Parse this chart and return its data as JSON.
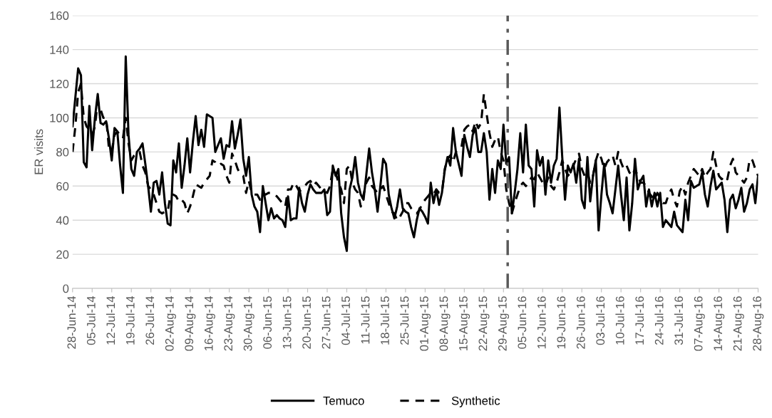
{
  "chart_data": {
    "type": "line",
    "ylabel": "ER visits",
    "categories": [
      "28-Jun-14",
      null,
      null,
      null,
      null,
      null,
      null,
      "05-Jul-14",
      null,
      null,
      null,
      null,
      null,
      null,
      "12-Jul-14",
      null,
      null,
      null,
      null,
      null,
      null,
      "19-Jul-14",
      null,
      null,
      null,
      null,
      null,
      null,
      "26-Jul-14",
      null,
      null,
      null,
      null,
      null,
      null,
      "02-Aug-14",
      null,
      null,
      null,
      null,
      null,
      null,
      "09-Aug-14",
      null,
      null,
      null,
      null,
      null,
      null,
      "16-Aug-14",
      null,
      null,
      null,
      null,
      null,
      null,
      "23-Aug-14",
      null,
      null,
      null,
      null,
      null,
      null,
      "30-Aug-14",
      null,
      null,
      null,
      null,
      null,
      null,
      "06-Jun-15",
      null,
      null,
      null,
      null,
      null,
      null,
      "13-Jun-15",
      null,
      null,
      null,
      null,
      null,
      null,
      "20-Jun-15",
      null,
      null,
      null,
      null,
      null,
      null,
      "27-Jun-15",
      null,
      null,
      null,
      null,
      null,
      null,
      "04-Jul-15",
      null,
      null,
      null,
      null,
      null,
      null,
      "11-Jul-15",
      null,
      null,
      null,
      null,
      null,
      null,
      "18-Jul-15",
      null,
      null,
      null,
      null,
      null,
      null,
      "25-Jul-15",
      null,
      null,
      null,
      null,
      null,
      null,
      "01-Aug-15",
      null,
      null,
      null,
      null,
      null,
      null,
      "08-Aug-15",
      null,
      null,
      null,
      null,
      null,
      null,
      "15-Aug-15",
      null,
      null,
      null,
      null,
      null,
      null,
      "22-Aug-15",
      null,
      null,
      null,
      null,
      null,
      null,
      "29-Aug-15",
      null,
      null,
      null,
      null,
      null,
      null,
      "05-Jun-16",
      null,
      null,
      null,
      null,
      null,
      null,
      "12-Jun-16",
      null,
      null,
      null,
      null,
      null,
      null,
      "19-Jun-16",
      null,
      null,
      null,
      null,
      null,
      null,
      "26-Jun-16",
      null,
      null,
      null,
      null,
      null,
      null,
      "03-Jul-16",
      null,
      null,
      null,
      null,
      null,
      null,
      "10-Jul-16",
      null,
      null,
      null,
      null,
      null,
      null,
      "17-Jul-16",
      null,
      null,
      null,
      null,
      null,
      null,
      "24-Jul-16",
      null,
      null,
      null,
      null,
      null,
      null,
      "31-Jul-16",
      null,
      null,
      null,
      null,
      null,
      null,
      "07-Aug-16",
      null,
      null,
      null,
      null,
      null,
      null,
      "14-Aug-16",
      null,
      null,
      null,
      null,
      null,
      null,
      "21-Aug-16",
      null,
      null,
      null,
      null,
      null,
      null,
      "28-Aug-16"
    ],
    "series": [
      {
        "name": "Temuco",
        "color": "#000000",
        "line_style": "solid",
        "values": [
          95,
          112,
          129,
          125,
          74,
          71,
          107,
          81,
          100,
          114,
          97,
          96,
          98,
          88,
          75,
          94,
          92,
          72,
          56,
          136,
          90,
          70,
          66,
          80,
          82,
          85,
          73,
          60,
          45,
          62,
          63,
          55,
          68,
          50,
          38,
          37,
          75,
          68,
          85,
          59,
          72,
          88,
          68,
          86,
          101,
          84,
          93,
          83,
          102,
          101,
          100,
          80,
          84,
          88,
          76,
          84,
          83,
          98,
          82,
          90,
          99,
          76,
          66,
          77,
          55,
          48,
          45,
          33,
          60,
          50,
          40,
          47,
          41,
          43,
          41,
          40,
          36,
          54,
          40,
          41,
          41,
          59,
          50,
          45,
          55,
          61,
          58,
          56,
          56,
          56,
          58,
          43,
          45,
          72,
          66,
          70,
          44,
          30,
          22,
          58,
          65,
          77,
          62,
          55,
          52,
          67,
          82,
          68,
          58,
          45,
          60,
          76,
          73,
          55,
          47,
          41,
          48,
          58,
          47,
          45,
          44,
          36,
          30,
          40,
          47,
          45,
          42,
          38,
          62,
          50,
          58,
          49,
          56,
          69,
          77,
          72,
          94,
          80,
          73,
          66,
          90,
          83,
          77,
          90,
          94,
          80,
          80,
          91,
          80,
          52,
          70,
          56,
          75,
          70,
          96,
          73,
          77,
          44,
          56,
          70,
          91,
          68,
          96,
          72,
          70,
          48,
          81,
          72,
          77,
          55,
          75,
          62,
          72,
          76,
          106,
          77,
          52,
          72,
          68,
          73,
          62,
          76,
          52,
          47,
          77,
          51,
          66,
          75,
          34,
          55,
          73,
          55,
          50,
          44,
          58,
          72,
          55,
          40,
          65,
          34,
          50,
          76,
          58,
          63,
          66,
          48,
          58,
          48,
          56,
          48,
          56,
          36,
          40,
          38,
          36,
          45,
          37,
          35,
          33,
          52,
          40,
          63,
          59,
          60,
          61,
          68,
          55,
          48,
          60,
          69,
          58,
          60,
          62,
          52,
          33,
          52,
          55,
          47,
          52,
          59,
          45,
          50,
          58,
          61,
          50,
          66
        ]
      },
      {
        "name": "Synthetic",
        "color": "#000000",
        "line_style": "dashed",
        "values": [
          80,
          95,
          115,
          120,
          100,
          95,
          93,
          90,
          95,
          110,
          105,
          100,
          100,
          82,
          80,
          90,
          92,
          90,
          88,
          100,
          85,
          75,
          78,
          80,
          80,
          72,
          68,
          60,
          58,
          55,
          50,
          45,
          44,
          45,
          45,
          55,
          55,
          54,
          51,
          52,
          50,
          44,
          48,
          54,
          61,
          60,
          59,
          62,
          64,
          66,
          75,
          74,
          72,
          73,
          72,
          66,
          62,
          79,
          75,
          70,
          67,
          66,
          56,
          63,
          56,
          55,
          55,
          52,
          56,
          55,
          56,
          56,
          55,
          54,
          52,
          50,
          48,
          58,
          58,
          62,
          60,
          57,
          58,
          60,
          62,
          63,
          60,
          62,
          60,
          58,
          57,
          56,
          60,
          70,
          68,
          62,
          58,
          50,
          70,
          72,
          62,
          58,
          56,
          48,
          55,
          62,
          65,
          60,
          58,
          56,
          58,
          60,
          55,
          50,
          45,
          44,
          40,
          42,
          45,
          50,
          50,
          47,
          45,
          44,
          46,
          50,
          52,
          54,
          56,
          55,
          58,
          56,
          56,
          70,
          76,
          78,
          74,
          80,
          82,
          83,
          93,
          95,
          96,
          92,
          98,
          94,
          97,
          114,
          102,
          91,
          83,
          87,
          89,
          80,
          75,
          58,
          50,
          44,
          50,
          55,
          60,
          62,
          60,
          62,
          65,
          64,
          68,
          65,
          62,
          60,
          65,
          60,
          58,
          62,
          68,
          75,
          70,
          66,
          68,
          72,
          76,
          79,
          70,
          66,
          68,
          62,
          66,
          75,
          80,
          76,
          70,
          74,
          76,
          78,
          72,
          80,
          74,
          70,
          72,
          68,
          66,
          70,
          66,
          62,
          62,
          60,
          56,
          54,
          52,
          56,
          53,
          50,
          50,
          55,
          58,
          52,
          48,
          57,
          60,
          55,
          62,
          66,
          70,
          68,
          66,
          70,
          65,
          68,
          70,
          80,
          72,
          66,
          64,
          66,
          64,
          72,
          76,
          68,
          66,
          64,
          62,
          65,
          76,
          75,
          70,
          66
        ]
      }
    ],
    "ylim": [
      0,
      160
    ],
    "yticks": [
      0,
      20,
      40,
      60,
      80,
      100,
      120,
      140,
      160
    ],
    "grid": "y",
    "legend": "bottom"
  }
}
